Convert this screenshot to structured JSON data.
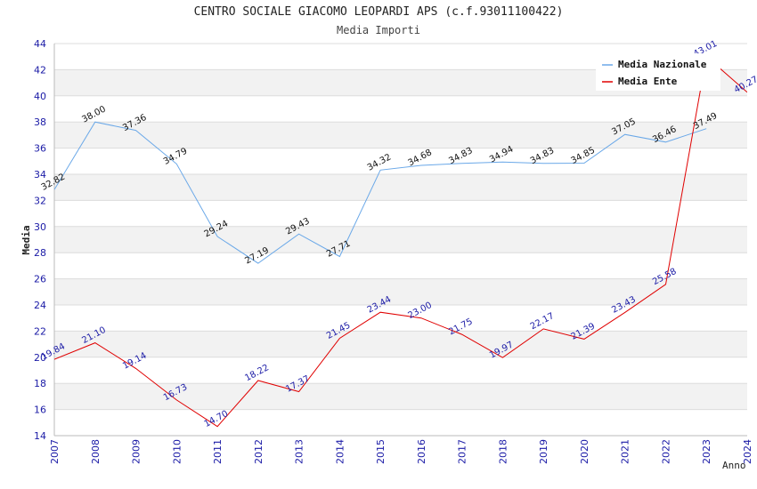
{
  "chart_data": {
    "type": "line",
    "title": "CENTRO SOCIALE GIACOMO LEOPARDI APS (c.f.93011100422)",
    "subtitle": "Media Importi",
    "xlabel": "Anno",
    "ylabel": "Media",
    "x": [
      "2007",
      "2008",
      "2009",
      "2010",
      "2011",
      "2012",
      "2013",
      "2014",
      "2015",
      "2016",
      "2017",
      "2018",
      "2019",
      "2020",
      "2021",
      "2022",
      "2023",
      "2024"
    ],
    "ylim": [
      14,
      44
    ],
    "yticks": [
      14,
      16,
      18,
      20,
      22,
      24,
      26,
      28,
      30,
      32,
      34,
      36,
      38,
      40,
      42,
      44
    ],
    "grid": "horizontal alternating bands",
    "legend_position": "top-right",
    "series": [
      {
        "name": "Media Nazionale",
        "color": "#6aa8e8",
        "values": [
          32.82,
          38.0,
          37.36,
          34.79,
          29.24,
          27.19,
          29.43,
          27.71,
          34.32,
          34.68,
          34.83,
          34.94,
          34.83,
          34.85,
          37.05,
          36.46,
          37.49,
          null
        ],
        "labels": [
          "32.82",
          "38.00",
          "37.36",
          "34.79",
          "29.24",
          "27.19",
          "29.43",
          "27.71",
          "34.32",
          "34.68",
          "34.83",
          "34.94",
          "34.83",
          "34.85",
          "37.05",
          "36.46",
          "37.49",
          ""
        ]
      },
      {
        "name": "Media Ente",
        "color": "#e00000",
        "values": [
          19.84,
          21.1,
          19.14,
          16.73,
          14.7,
          18.22,
          17.37,
          21.45,
          23.44,
          23.0,
          21.75,
          19.97,
          22.17,
          21.39,
          23.43,
          25.58,
          43.01,
          40.27
        ],
        "labels": [
          "19.84",
          "21.10",
          "19.14",
          "16.73",
          "14.70",
          "18.22",
          "17.37",
          "21.45",
          "23.44",
          "23.00",
          "21.75",
          "19.97",
          "22.17",
          "21.39",
          "23.43",
          "25.58",
          "43.01",
          "40.27"
        ]
      }
    ]
  }
}
